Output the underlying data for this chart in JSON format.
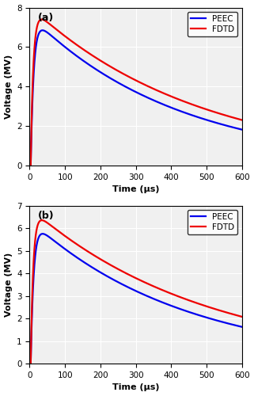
{
  "subplot_a": {
    "label": "(a)",
    "ylim": [
      0,
      8
    ],
    "yticks": [
      0,
      2,
      4,
      6,
      8
    ],
    "peec_peak_time": 28,
    "peec_peak_val": 6.85,
    "peec_tau": 420,
    "fdtd_peak_time": 25,
    "fdtd_peak_val": 7.4,
    "fdtd_tau": 480
  },
  "subplot_b": {
    "label": "(b)",
    "ylim": [
      0,
      7
    ],
    "yticks": [
      0,
      1,
      2,
      3,
      4,
      5,
      6,
      7
    ],
    "peec_peak_time": 28,
    "peec_peak_val": 5.75,
    "peec_tau": 440,
    "fdtd_peak_time": 25,
    "fdtd_peak_val": 6.35,
    "fdtd_tau": 500
  },
  "xlim": [
    0,
    600
  ],
  "xticks": [
    0,
    100,
    200,
    300,
    400,
    500,
    600
  ],
  "xlabel": "Time (μs)",
  "ylabel": "Voltage (MV)",
  "peec_color": "#0000ee",
  "fdtd_color": "#ee0000",
  "line_width": 1.6,
  "bg_color": "#f0f0f0",
  "grid_color": "#ffffff",
  "legend_peec": "PEEC",
  "legend_fdtd": "FDTD",
  "rise_start": 3,
  "rise_steepness": 0.18
}
